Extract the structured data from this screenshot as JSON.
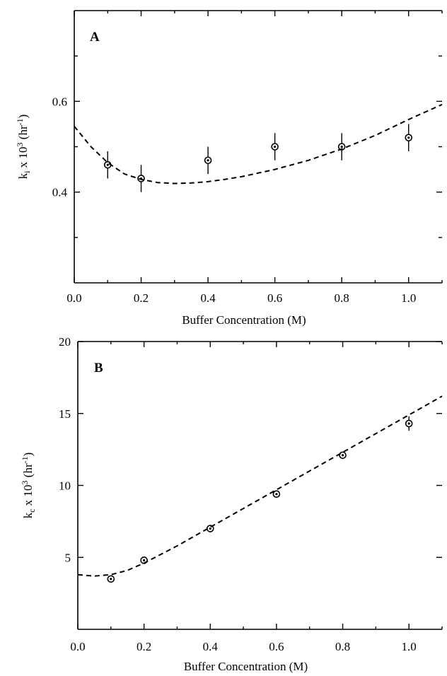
{
  "chart_data": [
    {
      "type": "scatter",
      "panel_label": "A",
      "xlabel": "Buffer Concentration (M)",
      "ylabel": {
        "base": "k",
        "sub": "i",
        "mid": " x 10",
        "sup": "3",
        "unit": " (hr",
        "unitsup": "-1",
        "close": ")"
      },
      "xlim": [
        0,
        1.1
      ],
      "ylim": [
        0.2,
        0.8
      ],
      "xticks": [
        0,
        0.2,
        0.4,
        0.6,
        0.8,
        1.0
      ],
      "xtick_labels": [
        "0.0",
        "0.2",
        "0.4",
        "0.6",
        "0.8",
        "1.0"
      ],
      "yticks": [
        0.4,
        0.6
      ],
      "ytick_labels": [
        "0.4",
        "0.6"
      ],
      "minor_yticks": [
        0.3,
        0.5,
        0.7
      ],
      "grid": false,
      "series": [
        {
          "kind": "points",
          "x": [
            0.1,
            0.2,
            0.4,
            0.6,
            0.8,
            1.0
          ],
          "y": [
            0.46,
            0.43,
            0.47,
            0.5,
            0.5,
            0.52
          ],
          "err": [
            0.03,
            0.03,
            0.03,
            0.03,
            0.03,
            0.03
          ]
        },
        {
          "kind": "fit",
          "style": "dashed",
          "x": [
            0.0,
            0.05,
            0.1,
            0.15,
            0.2,
            0.25,
            0.3,
            0.35,
            0.4,
            0.45,
            0.5,
            0.6,
            0.7,
            0.8,
            0.9,
            1.0,
            1.1
          ],
          "y": [
            0.545,
            0.5,
            0.465,
            0.44,
            0.428,
            0.421,
            0.419,
            0.42,
            0.423,
            0.428,
            0.434,
            0.45,
            0.47,
            0.495,
            0.525,
            0.56,
            0.593
          ]
        }
      ]
    },
    {
      "type": "scatter",
      "panel_label": "B",
      "xlabel": "Buffer Concentration (M)",
      "ylabel": {
        "base": "k",
        "sub": "c",
        "mid": " x 10",
        "sup": "3",
        "unit": " (hr",
        "unitsup": "-1",
        "close": ")"
      },
      "xlim": [
        0,
        1.1
      ],
      "ylim": [
        0,
        20
      ],
      "xticks": [
        0,
        0.2,
        0.4,
        0.6,
        0.8,
        1.0
      ],
      "xtick_labels": [
        "0.0",
        "0.2",
        "0.4",
        "0.6",
        "0.8",
        "1.0"
      ],
      "yticks": [
        5,
        10,
        15,
        20
      ],
      "ytick_labels": [
        "5",
        "10",
        "15",
        "20"
      ],
      "grid": false,
      "series": [
        {
          "kind": "points",
          "x": [
            0.1,
            0.2,
            0.4,
            0.6,
            0.8,
            1.0
          ],
          "y": [
            3.5,
            4.8,
            7.0,
            9.4,
            12.1,
            14.3
          ],
          "err": [
            0.2,
            0.2,
            0.2,
            0.2,
            0.2,
            0.5
          ]
        },
        {
          "kind": "fit",
          "style": "dashed",
          "x": [
            0.0,
            0.05,
            0.1,
            0.15,
            0.2,
            0.25,
            0.3,
            0.4,
            0.5,
            0.6,
            0.7,
            0.8,
            0.9,
            1.0,
            1.1
          ],
          "y": [
            3.8,
            3.7,
            3.8,
            4.1,
            4.6,
            5.2,
            5.8,
            7.1,
            8.4,
            9.7,
            11.0,
            12.3,
            13.6,
            14.9,
            16.2
          ]
        }
      ]
    }
  ]
}
